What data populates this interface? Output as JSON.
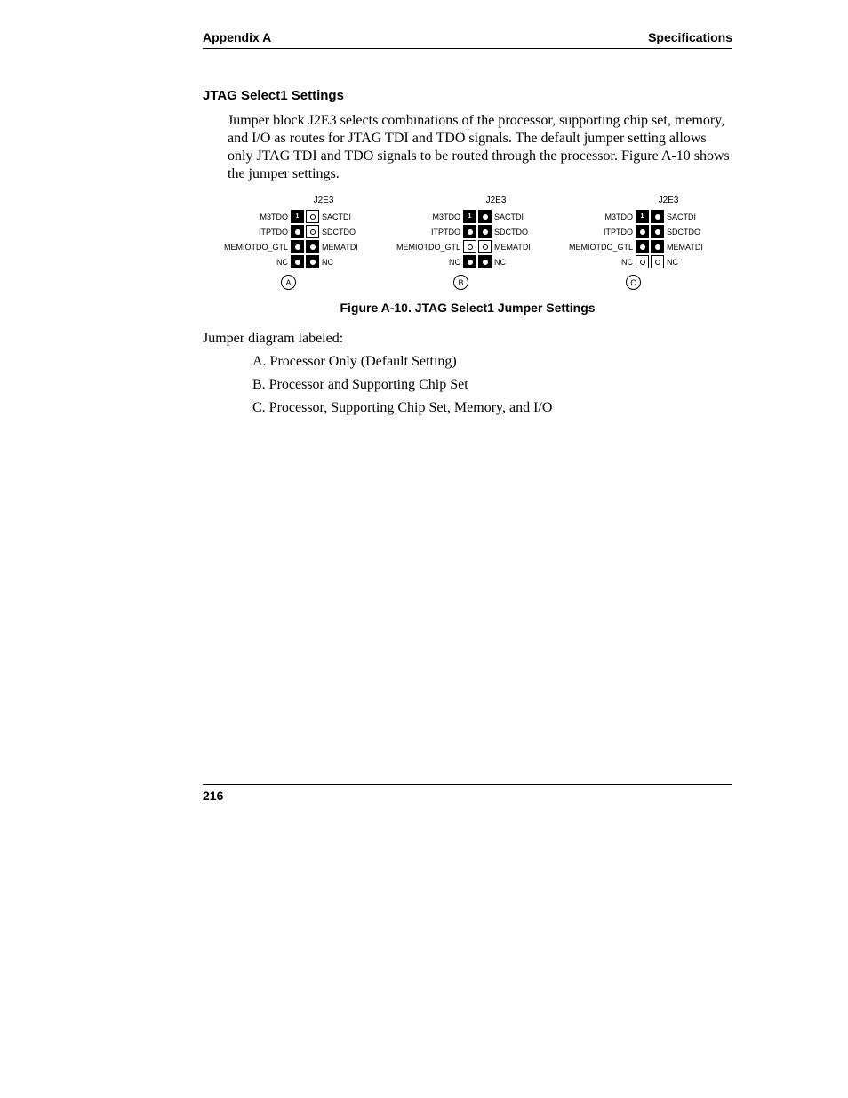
{
  "header": {
    "left": "Appendix A",
    "right": "Specifications"
  },
  "section_title": "JTAG Select1 Settings",
  "body": "Jumper block J2E3 selects combinations of the processor, supporting chip set, memory, and I/O as routes for JTAG TDI and TDO signals.  The default jumper setting allows only JTAG TDI and TDO signals to be routed through the processor. Figure A-10 shows the jumper settings.",
  "figure": {
    "block_label": "J2E3",
    "left_labels": [
      "M3TDO",
      "ITPTDO",
      "MEMIOTDO_GTL",
      "NC"
    ],
    "right_labels": [
      "SACTDI",
      "SDCTDO",
      "MEMATDI",
      "NC"
    ],
    "blocks": [
      {
        "letter": "A",
        "rows": [
          {
            "l": "one",
            "r": "open"
          },
          {
            "l": "filled",
            "r": "open"
          },
          {
            "l": "filled",
            "r": "filled"
          },
          {
            "l": "filled",
            "r": "filled"
          }
        ]
      },
      {
        "letter": "B",
        "rows": [
          {
            "l": "one",
            "r": "filled"
          },
          {
            "l": "filled",
            "r": "filled"
          },
          {
            "l": "open",
            "r": "open"
          },
          {
            "l": "filled",
            "r": "filled"
          }
        ]
      },
      {
        "letter": "C",
        "rows": [
          {
            "l": "one",
            "r": "filled"
          },
          {
            "l": "filled",
            "r": "filled"
          },
          {
            "l": "filled",
            "r": "filled"
          },
          {
            "l": "open",
            "r": "open"
          }
        ]
      }
    ],
    "caption": "Figure A-10.  JTAG Select1 Jumper Settings"
  },
  "para2": "Jumper diagram labeled:",
  "list": [
    "A.  Processor Only (Default Setting)",
    "B.  Processor and Supporting Chip Set",
    "C.  Processor, Supporting Chip Set, Memory, and I/O"
  ],
  "page_number": "216",
  "style": {
    "body_font_pt": 16,
    "sans_font_pt": 14,
    "diagram_font_pt": 9,
    "text_color": "#000000",
    "background_color": "#ffffff"
  }
}
